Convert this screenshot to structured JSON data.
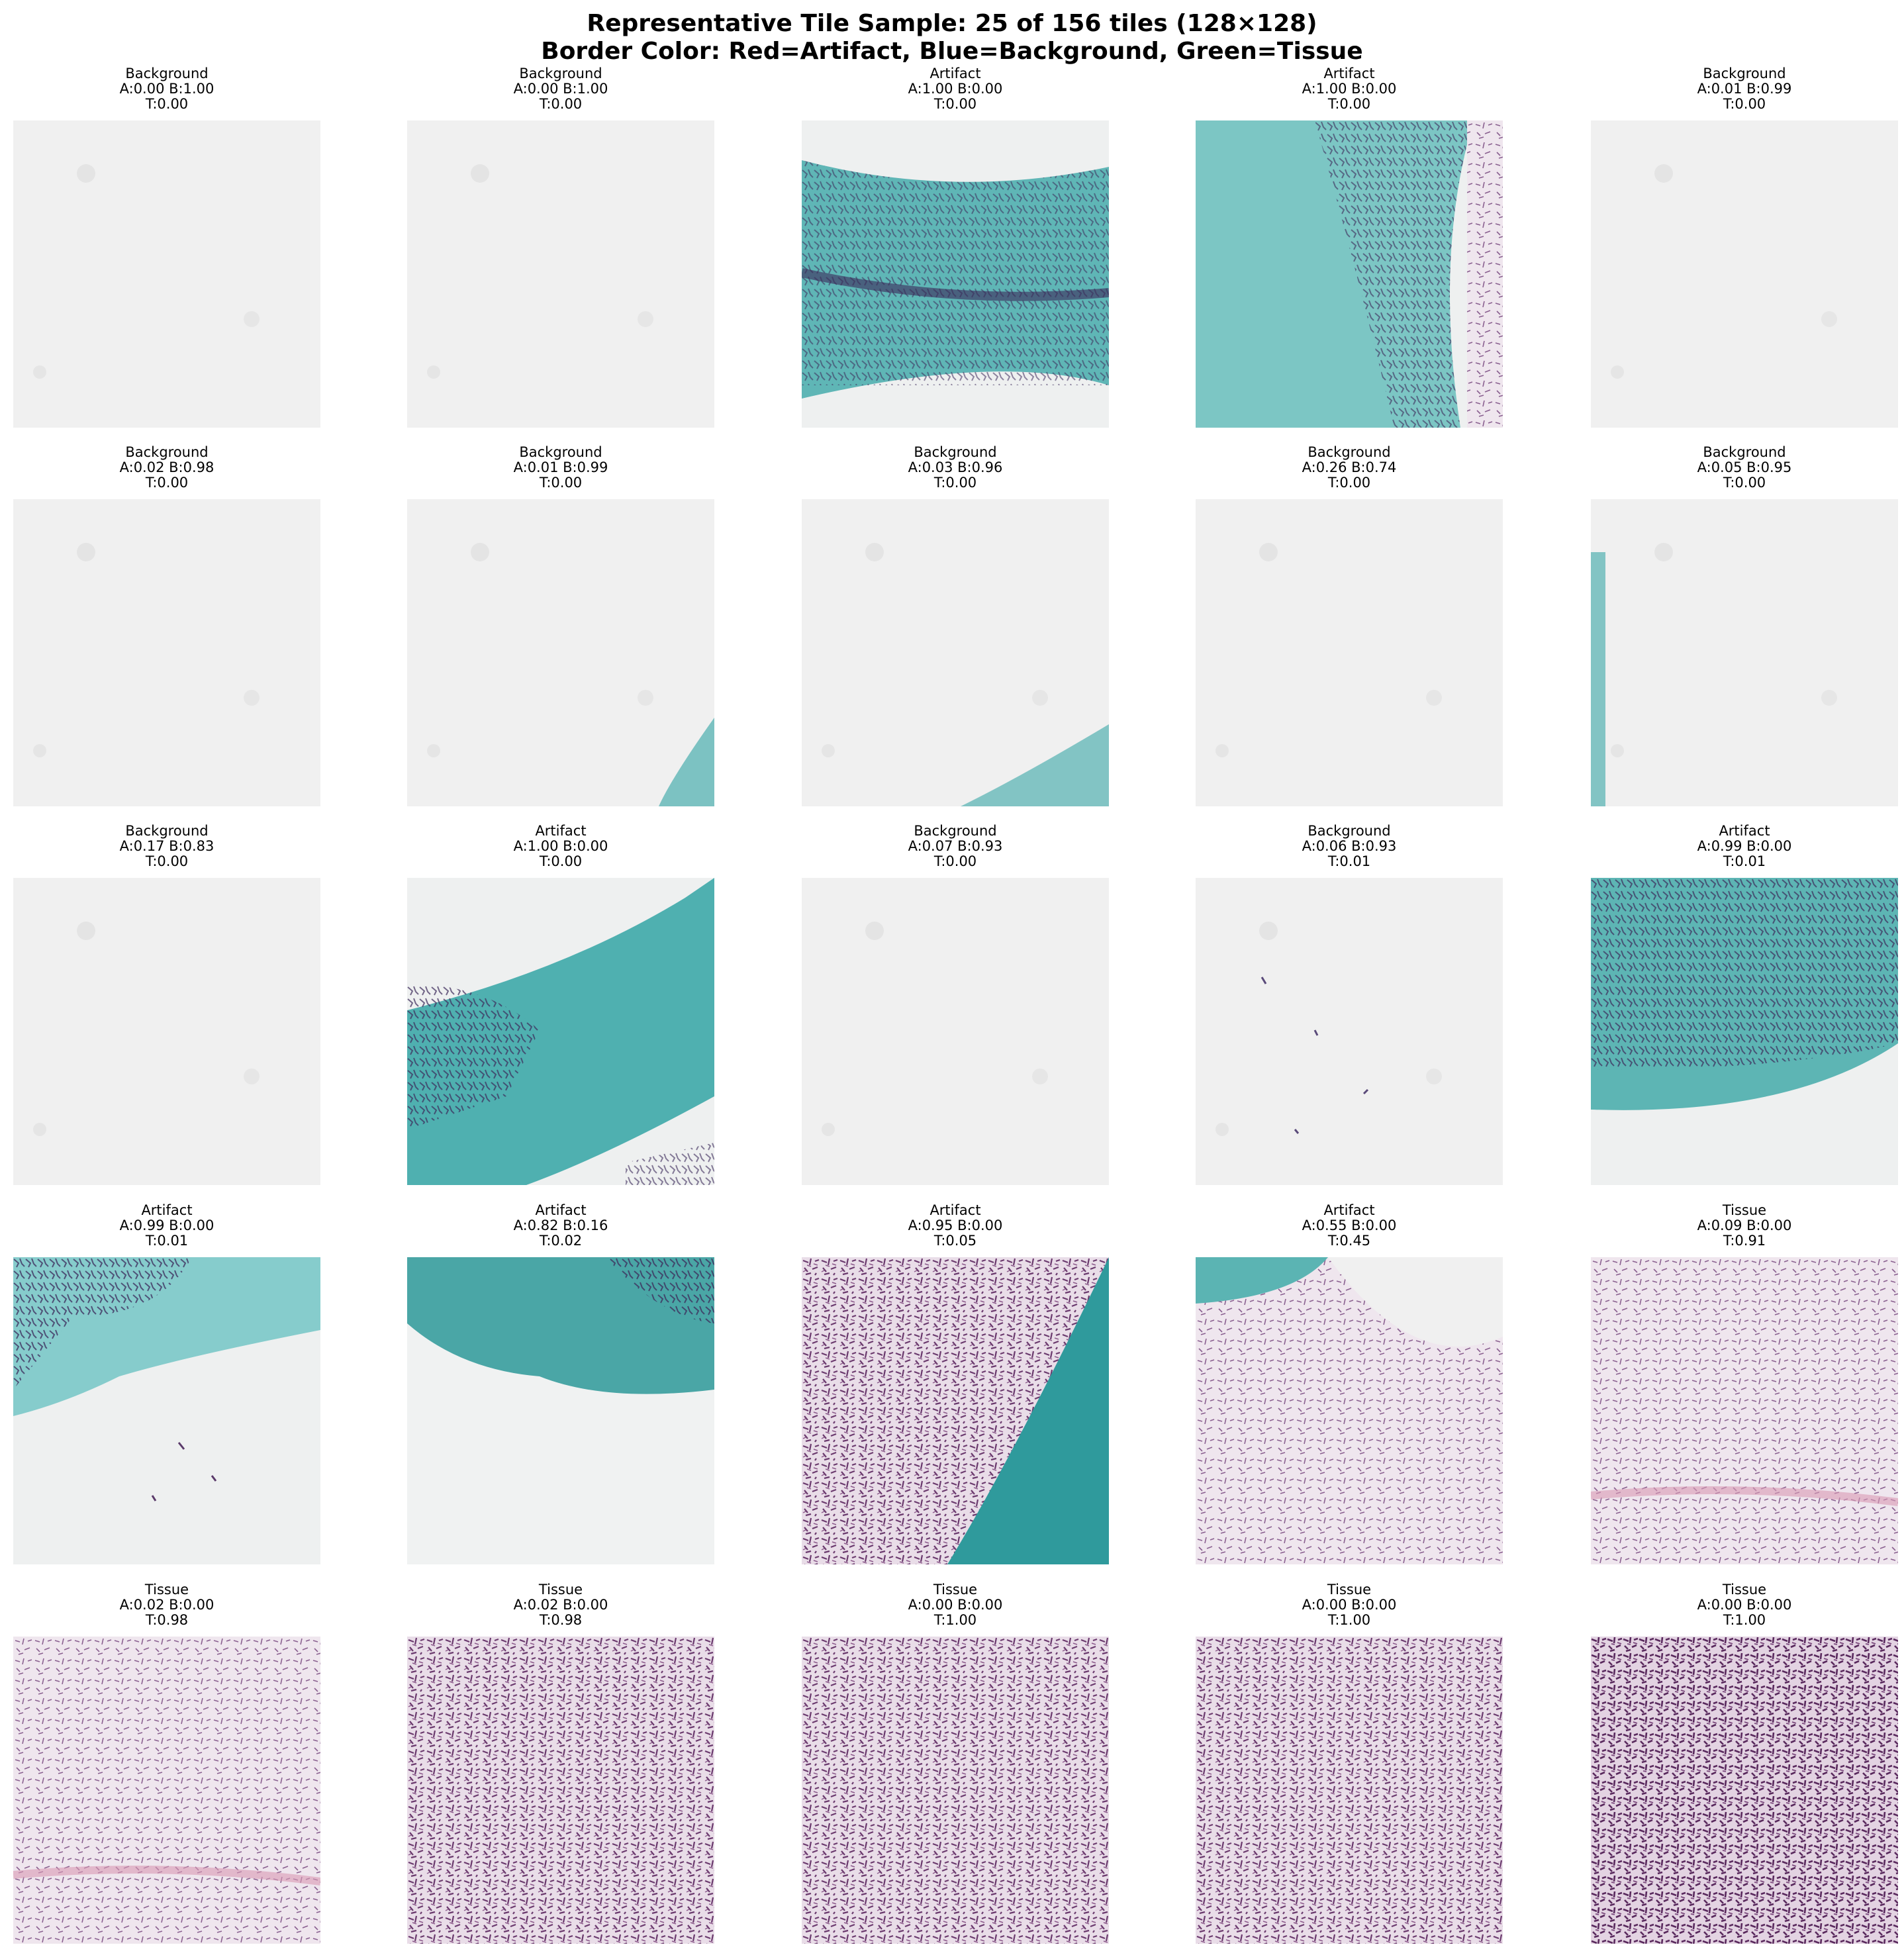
{
  "header": {
    "title": "Representative Tile Sample: 25 of 156 tiles (128×128)",
    "subtitle": "Border Color: Red=Artifact, Blue=Background, Green=Tissue"
  },
  "legend_colors": {
    "artifact": "#ff0000",
    "background": "#0000ff",
    "tissue": "#00a000"
  },
  "tiles": [
    {
      "label": "Background",
      "ab": "A:0.00 B:1.00",
      "t": "T:0.00",
      "kind": "bg"
    },
    {
      "label": "Background",
      "ab": "A:0.00 B:1.00",
      "t": "T:0.00",
      "kind": "bg"
    },
    {
      "label": "Artifact",
      "ab": "A:1.00 B:0.00",
      "t": "T:0.00",
      "kind": "art-band"
    },
    {
      "label": "Artifact",
      "ab": "A:1.00 B:0.00",
      "t": "T:0.00",
      "kind": "art-left"
    },
    {
      "label": "Background",
      "ab": "A:0.01 B:0.99",
      "t": "T:0.00",
      "kind": "bg"
    },
    {
      "label": "Background",
      "ab": "A:0.02 B:0.98",
      "t": "T:0.00",
      "kind": "bg"
    },
    {
      "label": "Background",
      "ab": "A:0.01 B:0.99",
      "t": "T:0.00",
      "kind": "bg-corner"
    },
    {
      "label": "Background",
      "ab": "A:0.03 B:0.96",
      "t": "T:0.00",
      "kind": "bg-corner2"
    },
    {
      "label": "Background",
      "ab": "A:0.26 B:0.74",
      "t": "T:0.00",
      "kind": "bg"
    },
    {
      "label": "Background",
      "ab": "A:0.05 B:0.95",
      "t": "T:0.00",
      "kind": "bg-leftedge"
    },
    {
      "label": "Background",
      "ab": "A:0.17 B:0.83",
      "t": "T:0.00",
      "kind": "bg"
    },
    {
      "label": "Artifact",
      "ab": "A:1.00 B:0.00",
      "t": "T:0.00",
      "kind": "art-diag"
    },
    {
      "label": "Background",
      "ab": "A:0.07 B:0.93",
      "t": "T:0.00",
      "kind": "bg"
    },
    {
      "label": "Background",
      "ab": "A:0.06 B:0.93",
      "t": "T:0.01",
      "kind": "bg-speck"
    },
    {
      "label": "Artifact",
      "ab": "A:0.99 B:0.00",
      "t": "T:0.01",
      "kind": "art-top"
    },
    {
      "label": "Artifact",
      "ab": "A:0.99 B:0.00",
      "t": "T:0.01",
      "kind": "art-topleft"
    },
    {
      "label": "Artifact",
      "ab": "A:0.82 B:0.16",
      "t": "T:0.02",
      "kind": "art-topband"
    },
    {
      "label": "Artifact",
      "ab": "A:0.95 B:0.00",
      "t": "T:0.05",
      "kind": "tissue-diag"
    },
    {
      "label": "Artifact",
      "ab": "A:0.55 B:0.00",
      "t": "T:0.45",
      "kind": "tissue-cornerblob"
    },
    {
      "label": "Tissue",
      "ab": "A:0.09 B:0.00",
      "t": "T:0.91",
      "kind": "tissue-light"
    },
    {
      "label": "Tissue",
      "ab": "A:0.02 B:0.00",
      "t": "T:0.98",
      "kind": "tissue-light"
    },
    {
      "label": "Tissue",
      "ab": "A:0.02 B:0.00",
      "t": "T:0.98",
      "kind": "tissue"
    },
    {
      "label": "Tissue",
      "ab": "A:0.00 B:0.00",
      "t": "T:1.00",
      "kind": "tissue"
    },
    {
      "label": "Tissue",
      "ab": "A:0.00 B:0.00",
      "t": "T:1.00",
      "kind": "tissue"
    },
    {
      "label": "Tissue",
      "ab": "A:0.00 B:0.00",
      "t": "T:1.00",
      "kind": "tissue-dark"
    }
  ]
}
